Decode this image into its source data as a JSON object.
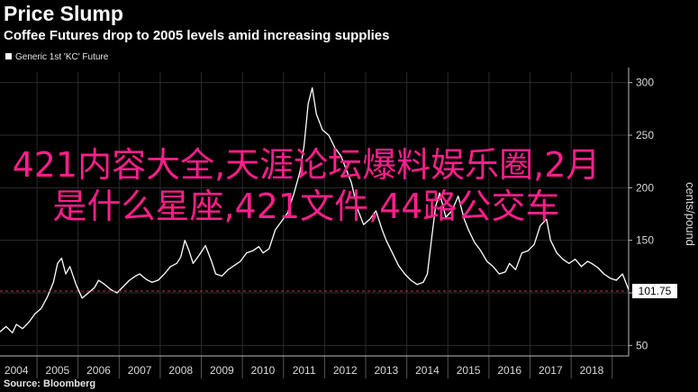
{
  "header": {
    "title": "Price Slump",
    "subtitle": "Coffee Futures drop to 2005 levels amid increasing supplies"
  },
  "legend": {
    "label": "Generic 1st 'KC' Future"
  },
  "source": "Source: Bloomberg",
  "overlay_text": "421内容大全,天涯论坛爆料娱乐圈,2月是什么星座,421文件,44路公交车",
  "colors": {
    "background": "#000000",
    "line": "#ffffff",
    "grid": "#2b2b2b",
    "reference": "#c0392b",
    "overlay": "#ff1f8a"
  },
  "chart_data": {
    "type": "line",
    "title": "Price Slump",
    "subtitle": "Coffee Futures drop to 2005 levels amid increasing supplies",
    "ylabel": "cents/pound",
    "xlim": [
      2003.6,
      2018.9
    ],
    "ylim": [
      40,
      310
    ],
    "x_ticks": [
      "2004",
      "2005",
      "2006",
      "2007",
      "2008",
      "2009",
      "2010",
      "2011",
      "2012",
      "2013",
      "2014",
      "2015",
      "2016",
      "2017",
      "2018"
    ],
    "y_ticks": [
      50,
      100,
      150,
      200,
      250,
      300
    ],
    "last_value_label": "101.75",
    "reference_line": 101.75,
    "series": [
      {
        "name": "Generic 1st 'KC' Future",
        "x": [
          2003.6,
          2003.75,
          2003.9,
          2004.0,
          2004.15,
          2004.3,
          2004.45,
          2004.6,
          2004.75,
          2004.9,
          2005.0,
          2005.1,
          2005.2,
          2005.3,
          2005.45,
          2005.6,
          2005.75,
          2005.9,
          2006.0,
          2006.15,
          2006.3,
          2006.45,
          2006.6,
          2006.75,
          2006.9,
          2007.0,
          2007.15,
          2007.3,
          2007.45,
          2007.6,
          2007.75,
          2007.9,
          2008.0,
          2008.1,
          2008.2,
          2008.3,
          2008.45,
          2008.6,
          2008.75,
          2008.85,
          2009.0,
          2009.15,
          2009.3,
          2009.45,
          2009.6,
          2009.75,
          2009.9,
          2010.0,
          2010.15,
          2010.3,
          2010.45,
          2010.6,
          2010.75,
          2010.9,
          2011.0,
          2011.1,
          2011.2,
          2011.3,
          2011.45,
          2011.6,
          2011.75,
          2011.9,
          2012.0,
          2012.15,
          2012.3,
          2012.45,
          2012.6,
          2012.75,
          2012.9,
          2013.0,
          2013.15,
          2013.3,
          2013.45,
          2013.6,
          2013.75,
          2013.9,
          2014.0,
          2014.1,
          2014.2,
          2014.3,
          2014.45,
          2014.6,
          2014.75,
          2014.9,
          2015.0,
          2015.15,
          2015.3,
          2015.45,
          2015.6,
          2015.75,
          2015.9,
          2016.0,
          2016.15,
          2016.3,
          2016.45,
          2016.6,
          2016.75,
          2016.9,
          2017.0,
          2017.15,
          2017.3,
          2017.45,
          2017.6,
          2017.75,
          2017.9,
          2018.0,
          2018.15,
          2018.3,
          2018.45,
          2018.6,
          2018.75,
          2018.9
        ],
        "values": [
          63,
          68,
          62,
          70,
          66,
          72,
          80,
          85,
          96,
          110,
          128,
          133,
          118,
          125,
          108,
          95,
          100,
          105,
          112,
          108,
          103,
          100,
          106,
          112,
          116,
          118,
          113,
          110,
          112,
          118,
          125,
          128,
          134,
          150,
          140,
          128,
          136,
          145,
          130,
          118,
          116,
          122,
          126,
          130,
          138,
          140,
          144,
          138,
          142,
          160,
          168,
          176,
          194,
          215,
          240,
          280,
          295,
          270,
          255,
          250,
          238,
          230,
          220,
          205,
          180,
          165,
          170,
          178,
          160,
          150,
          138,
          126,
          118,
          112,
          108,
          110,
          118,
          150,
          182,
          195,
          172,
          178,
          192,
          170,
          160,
          148,
          140,
          130,
          125,
          118,
          120,
          128,
          122,
          138,
          140,
          146,
          164,
          170,
          150,
          138,
          132,
          128,
          132,
          125,
          130,
          128,
          124,
          118,
          114,
          112,
          118,
          103
        ]
      }
    ]
  }
}
